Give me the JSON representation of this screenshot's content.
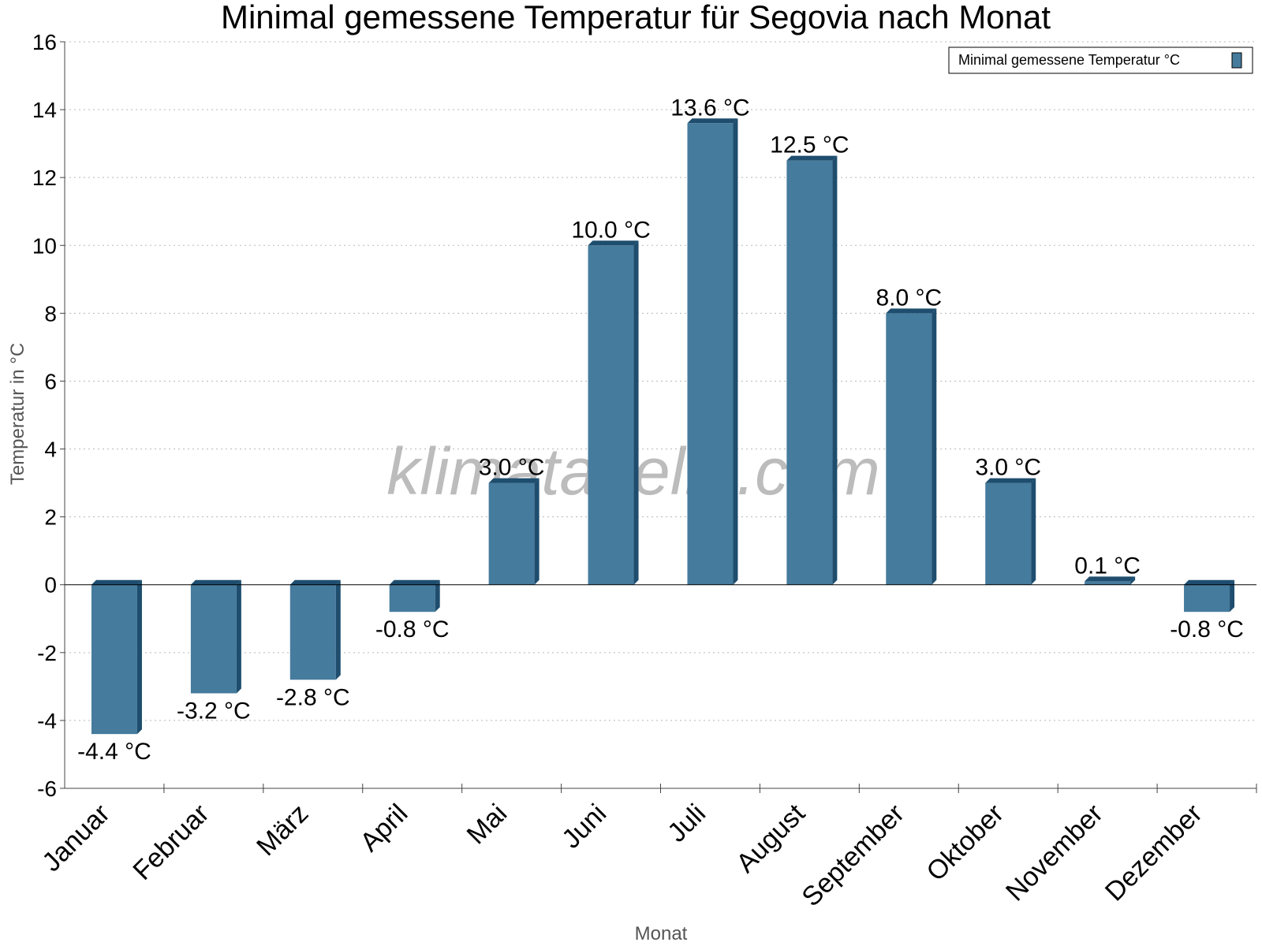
{
  "chart_data": {
    "type": "bar",
    "title": "Minimal gemessene Temperatur für Segovia nach Monat",
    "xlabel": "Monat",
    "ylabel": "Temperatur in °C",
    "ylim": [
      -6,
      16
    ],
    "yticks": [
      "16",
      "14",
      "12",
      "10",
      "8",
      "6",
      "4",
      "2",
      "0",
      "-2",
      "-4",
      "-6"
    ],
    "grid": true,
    "legend_position": "top-right",
    "categories": [
      "Januar",
      "Februar",
      "März",
      "April",
      "Mai",
      "Juni",
      "Juli",
      "August",
      "September",
      "Oktober",
      "November",
      "Dezember"
    ],
    "series": [
      {
        "name": "Minimal gemessene Temperatur °C",
        "values": [
          -4.4,
          -3.2,
          -2.8,
          -0.8,
          3.0,
          10.0,
          13.6,
          12.5,
          8.0,
          3.0,
          0.1,
          -0.8
        ],
        "labels": [
          "-4.4 °C",
          "-3.2 °C",
          "-2.8 °C",
          "-0.8 °C",
          "3.0 °C",
          "10.0 °C",
          "13.6 °C",
          "12.5 °C",
          "8.0 °C",
          "3.0 °C",
          "0.1 °C",
          "-0.8 °C"
        ],
        "color": "#457b9d",
        "side_color": "#1e4d6e"
      }
    ]
  },
  "watermark": "klimatabelle.com"
}
